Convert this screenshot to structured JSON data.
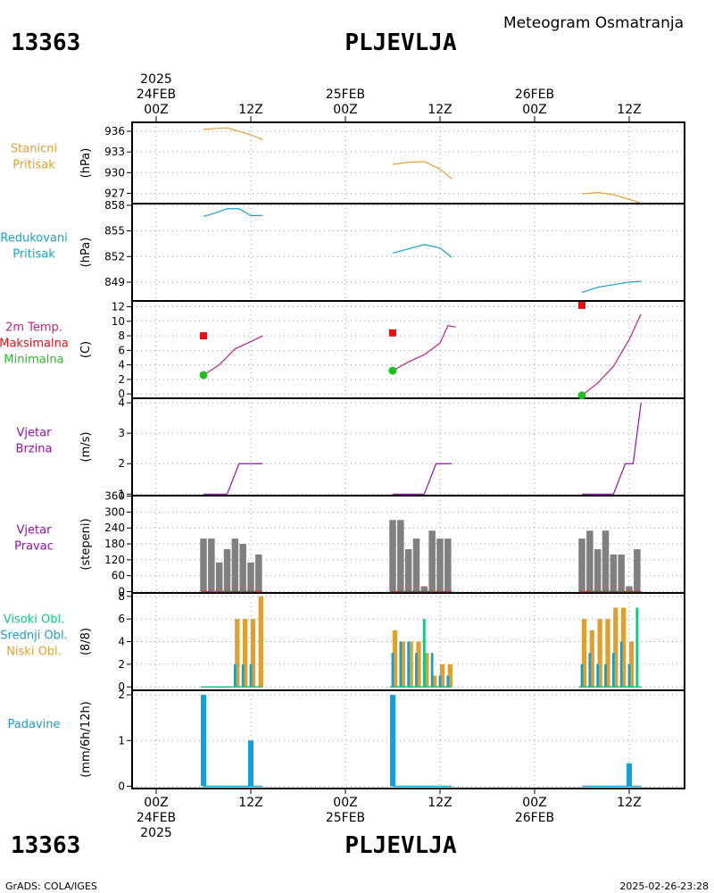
{
  "header": {
    "station_id": "13363",
    "station_name": "PLJEVLJA",
    "product": "Meteogram Osmatranja"
  },
  "footer": {
    "credit": "GrADS: COLA/IGES",
    "timestamp": "2025-02-26-23:28"
  },
  "time_axis": {
    "top_labels": [
      {
        "hour": 0,
        "line1": "2025",
        "line2": "24FEB",
        "line3": "00Z"
      },
      {
        "hour": 12,
        "line1": "",
        "line2": "",
        "line3": "12Z"
      },
      {
        "hour": 24,
        "line1": "",
        "line2": "25FEB",
        "line3": "00Z"
      },
      {
        "hour": 36,
        "line1": "",
        "line2": "",
        "line3": "12Z"
      },
      {
        "hour": 48,
        "line1": "",
        "line2": "26FEB",
        "line3": "00Z"
      },
      {
        "hour": 60,
        "line1": "",
        "line2": "",
        "line3": "12Z"
      }
    ],
    "bottom_labels": [
      {
        "hour": 0,
        "line1": "00Z",
        "line2": "24FEB",
        "line3": "2025"
      },
      {
        "hour": 12,
        "line1": "12Z",
        "line2": "",
        "line3": ""
      },
      {
        "hour": 24,
        "line1": "00Z",
        "line2": "25FEB",
        "line3": ""
      },
      {
        "hour": 36,
        "line1": "12Z",
        "line2": "",
        "line3": ""
      },
      {
        "hour": 48,
        "line1": "00Z",
        "line2": "26FEB",
        "line3": ""
      },
      {
        "hour": 60,
        "line1": "12Z",
        "line2": "",
        "line3": ""
      }
    ],
    "xlim_hours": [
      -3,
      70
    ],
    "gridlines_hours": [
      0,
      12,
      24,
      36,
      48,
      60
    ]
  },
  "colors": {
    "station_pressure": "#e0a030",
    "reduced_pressure": "#1aa0c8",
    "temperature_line": "#c0208a",
    "tmax": "#e81010",
    "tmin": "#20c020",
    "wind_speed": "#9010b0",
    "wind_dir": "#808080",
    "wind_dir_base": "#d03030",
    "high_cloud": "#10c880",
    "mid_cloud": "#1aa0c8",
    "low_cloud": "#e0a030",
    "precip": "#10a0e0",
    "label_station_pressure": "#e0a030",
    "label_reduced_pressure": "#1aa0c8",
    "label_temp": "#c0208a",
    "label_tmax": "#e81010",
    "label_tmin": "#20c020",
    "label_wind": "#9010b0",
    "label_precip": "#1aa0c8"
  },
  "chart_data": [
    {
      "type": "line",
      "panel": "station_pressure",
      "labels": [
        "Stanicni",
        "Pritisak"
      ],
      "unit": "(hPa)",
      "ylim": [
        925.5,
        937.3
      ],
      "yticks": [
        927,
        930,
        933,
        936
      ],
      "series": [
        {
          "segments": [
            {
              "x": [
                6,
                9,
                12,
                13.5
              ],
              "y": [
                936.3,
                936.5,
                935.5,
                934.8
              ]
            },
            {
              "x": [
                30,
                32,
                34,
                36,
                37.5
              ],
              "y": [
                931.2,
                931.5,
                931.6,
                930.5,
                929.1
              ]
            },
            {
              "x": [
                54,
                56,
                58,
                60,
                61.5
              ],
              "y": [
                926.9,
                927.1,
                926.8,
                926.1,
                925.6
              ]
            }
          ]
        }
      ]
    },
    {
      "type": "line",
      "panel": "reduced_pressure",
      "labels": [
        "Redukovani",
        "Pritisak"
      ],
      "unit": "(hPa)",
      "ylim": [
        846.8,
        858.2
      ],
      "yticks": [
        849,
        852,
        855,
        858
      ],
      "series": [
        {
          "segments": [
            {
              "x": [
                6,
                7.5,
                9,
                10.5,
                12,
                13.5
              ],
              "y": [
                856.7,
                857.1,
                857.6,
                857.6,
                856.8,
                856.8
              ]
            },
            {
              "x": [
                30,
                32,
                34,
                36,
                37.5
              ],
              "y": [
                852.4,
                852.9,
                853.4,
                853.0,
                851.9
              ]
            },
            {
              "x": [
                54,
                56,
                58,
                60,
                61.5
              ],
              "y": [
                847.8,
                848.4,
                848.7,
                849.0,
                849.1
              ]
            }
          ]
        }
      ]
    },
    {
      "type": "line",
      "panel": "temperature",
      "labels": [
        "2m Temp.",
        "Maksimalna",
        "Minimalna"
      ],
      "unit": "(C)",
      "ylim": [
        -0.6,
        12.8
      ],
      "yticks": [
        0,
        2,
        4,
        6,
        8,
        10,
        12
      ],
      "series": [
        {
          "name": "2m Temp.",
          "segments": [
            {
              "x": [
                6,
                8,
                10,
                12,
                13.5
              ],
              "y": [
                2.6,
                4.0,
                6.2,
                7.2,
                8.0
              ]
            },
            {
              "x": [
                30,
                32,
                34,
                36,
                37,
                38
              ],
              "y": [
                3.2,
                4.4,
                5.4,
                7.0,
                9.4,
                9.2
              ]
            },
            {
              "x": [
                54,
                56,
                58,
                60,
                61.5
              ],
              "y": [
                -0.2,
                1.5,
                3.8,
                7.5,
                11.0
              ]
            }
          ]
        }
      ],
      "tmax": [
        {
          "x": 6,
          "y": 8.0
        },
        {
          "x": 30,
          "y": 8.4
        },
        {
          "x": 54,
          "y": 12.2
        }
      ],
      "tmin": [
        {
          "x": 6,
          "y": 2.6
        },
        {
          "x": 30,
          "y": 3.2
        },
        {
          "x": 54,
          "y": -0.2
        }
      ]
    },
    {
      "type": "line",
      "panel": "wind_speed",
      "labels": [
        "Vjetar",
        "Brzina"
      ],
      "unit": "(m/s)",
      "ylim": [
        0.95,
        4.15
      ],
      "yticks": [
        1,
        2,
        3,
        4
      ],
      "series": [
        {
          "name": "Vjetar Brzina",
          "segments": [
            {
              "x": [
                6,
                9,
                10.5,
                13.5
              ],
              "y": [
                1,
                1,
                2,
                2
              ]
            },
            {
              "x": [
                30,
                34,
                35.5,
                37.5
              ],
              "y": [
                1,
                1,
                2,
                2
              ]
            },
            {
              "x": [
                54,
                58,
                59.5,
                60.5,
                61.5
              ],
              "y": [
                1,
                1,
                2,
                2,
                4
              ]
            }
          ]
        }
      ]
    },
    {
      "type": "bar",
      "panel": "wind_direction",
      "labels": [
        "Vjetar",
        "Pravac"
      ],
      "unit": "(stepeni)",
      "ylim": [
        -5,
        362
      ],
      "yticks": [
        0,
        60,
        120,
        180,
        240,
        300,
        360
      ],
      "bar_width_hours": 0.85,
      "x": [
        6,
        7,
        8,
        9,
        10,
        11,
        12,
        13,
        30,
        31,
        32,
        33,
        34,
        35,
        36,
        37,
        54,
        55,
        56,
        57,
        58,
        59,
        60,
        61
      ],
      "values": [
        200,
        200,
        110,
        160,
        200,
        180,
        110,
        140,
        270,
        270,
        160,
        200,
        20,
        230,
        200,
        200,
        200,
        230,
        160,
        230,
        140,
        140,
        20,
        160
      ]
    },
    {
      "type": "bar",
      "panel": "clouds",
      "labels": [
        "Visoki Obl.",
        "Srednji Obl.",
        "Niski Obl."
      ],
      "unit": "(8/8)",
      "ylim": [
        -0.3,
        8.3
      ],
      "yticks": [
        0,
        2,
        4,
        6,
        8
      ],
      "x": [
        6,
        7,
        8,
        9,
        10,
        11,
        12,
        13,
        30,
        31,
        32,
        33,
        34,
        35,
        36,
        37,
        54,
        55,
        56,
        57,
        58,
        59,
        60,
        61
      ],
      "series": [
        {
          "name": "Visoki Obl.",
          "values": [
            0,
            0,
            0,
            0,
            0,
            0,
            0,
            0,
            0,
            0,
            0,
            0,
            6,
            0,
            0,
            0,
            0,
            0,
            0,
            0,
            0,
            0,
            0,
            7
          ]
        },
        {
          "name": "Srednji Obl.",
          "values": [
            0,
            0,
            0,
            0,
            2,
            2,
            2,
            0,
            3,
            4,
            4,
            3,
            3,
            3,
            1,
            1,
            2,
            3,
            2,
            2,
            3,
            4,
            2,
            0
          ]
        },
        {
          "name": "Niski Obl.",
          "values": [
            0,
            0,
            0,
            0,
            6,
            6,
            6,
            8,
            5,
            4,
            4,
            4,
            3,
            1,
            2,
            2,
            6,
            5,
            6,
            6,
            7,
            7,
            4,
            0
          ]
        }
      ]
    },
    {
      "type": "bar",
      "panel": "precipitation",
      "labels": [
        "Padavine"
      ],
      "unit": "(mm/6h/12h)",
      "ylim": [
        -0.05,
        2.1
      ],
      "yticks": [
        0,
        1,
        2
      ],
      "bar_width_hours": 0.9,
      "x": [
        6,
        12,
        30,
        60
      ],
      "values": [
        2.0,
        1.0,
        2.0,
        0.5
      ],
      "baseline_segments": [
        [
          6,
          13.5
        ],
        [
          30,
          37.5
        ],
        [
          54,
          61.5
        ]
      ]
    }
  ]
}
